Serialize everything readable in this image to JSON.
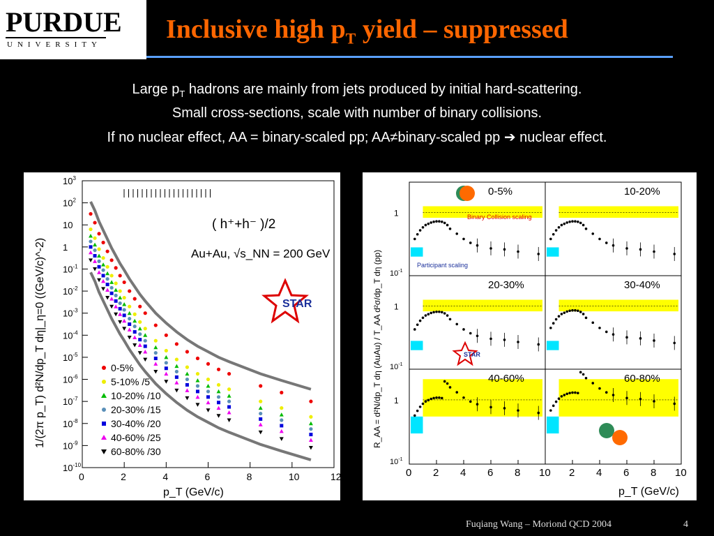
{
  "header": {
    "logo_name": "PURDUE",
    "logo_sub": "UNIVERSITY",
    "title_pre": "Inclusive high p",
    "title_sub": "T",
    "title_post": " yield – suppressed"
  },
  "body_text": {
    "line1_pre": "Large p",
    "line1_sub": "T",
    "line1_post": " hadrons are mainly from jets produced by initial hard-scattering.",
    "line2": "Small cross-sections, scale with number of binary collisions.",
    "line3_pre": "If no nuclear effect, AA = binary-scaled pp;   AA",
    "line3_neq": "≠",
    "line3_mid": "binary-scaled pp ",
    "line3_arrow": "➔",
    "line3_post": " nuclear effect."
  },
  "footer": {
    "credit": "Fuqiang Wang – Moriond QCD 2004",
    "page": "4"
  },
  "colors": {
    "title": "#ff6600",
    "rule": "#5aa0ff",
    "band_yellow": "#ffff00",
    "band_cyan": "#00e5ff",
    "envelope": "#777777"
  },
  "chart_data": [
    {
      "type": "scatter",
      "ylog": true,
      "xlim": [
        0,
        12
      ],
      "ylim_exp": [
        -10,
        3
      ],
      "xticks": [
        "0",
        "2",
        "4",
        "6",
        "8",
        "10",
        "12"
      ],
      "yticks": [
        "10^3",
        "10^2",
        "10",
        "1",
        "10^-1",
        "10^-2",
        "10^-3",
        "10^-4",
        "10^-5",
        "10^-6",
        "10^-7",
        "10^-8",
        "10^-9",
        "10^-10"
      ],
      "xlabel": "p_T (GeV/c)",
      "ylabel": "1/(2π p_T)  d²N/dp_T dη|_η=0 ((GeV/c)^-2)",
      "annotations": [
        "( h⁺+h⁻ )/2",
        "Au+Au, √s_NN = 200 GeV",
        "STAR"
      ],
      "x": [
        0.4,
        0.6,
        0.8,
        1.0,
        1.2,
        1.4,
        1.6,
        1.8,
        2.0,
        2.25,
        2.5,
        2.75,
        3.0,
        3.5,
        4.0,
        4.5,
        5.0,
        5.5,
        6.0,
        6.5,
        7.0,
        8.5,
        9.5,
        10.9
      ],
      "series": [
        {
          "name": "0-5%",
          "color": "#ee0000",
          "marker": "circle",
          "offset": 0.0
        },
        {
          "name": "5-10% /5",
          "color": "#eeee00",
          "marker": "circle",
          "offset": -0.7
        },
        {
          "name": "10-20% /10",
          "color": "#00bb00",
          "marker": "triangle-up",
          "offset": -1.0
        },
        {
          "name": "20-30% /15",
          "color": "#5a8fb8",
          "marker": "circle",
          "offset": -1.25
        },
        {
          "name": "30-40% /20",
          "color": "#0000dd",
          "marker": "square",
          "offset": -1.5
        },
        {
          "name": "40-60% /25",
          "color": "#ee00ee",
          "marker": "triangle-up",
          "offset": -1.75
        },
        {
          "name": "60-80% /30",
          "color": "#000000",
          "marker": "triangle-down",
          "offset": -2.1
        }
      ],
      "base_log10_y": [
        1.5,
        1.1,
        0.6,
        0.2,
        -0.2,
        -0.6,
        -0.95,
        -1.3,
        -1.6,
        -2.0,
        -2.35,
        -2.7,
        -3.0,
        -3.55,
        -4.0,
        -4.4,
        -4.75,
        -5.05,
        -5.3,
        -5.55,
        -5.75,
        -6.3,
        -6.6,
        -7.0
      ]
    },
    {
      "type": "scatter",
      "panels": [
        "0-5%",
        "10-20%",
        "20-30%",
        "30-40%",
        "40-60%",
        "60-80%"
      ],
      "ylog": true,
      "xlim": [
        0,
        10
      ],
      "ylim": [
        0.1,
        3
      ],
      "xticks": [
        "0",
        "2",
        "4",
        "6",
        "8",
        "10"
      ],
      "xtick_labels": [
        "2",
        "4",
        "6",
        "8",
        "10"
      ],
      "yticks": [
        "1",
        "10^-1"
      ],
      "xlabel": "p_T (GeV/c)",
      "ylabel": "R_AA = d²N/dp_T dη (AuAu) / T_AA d²σ/dp_T dη (pp)",
      "band_labels": [
        "Binary Collision scaling",
        "Participant scaling"
      ],
      "annotations": [
        "STAR"
      ],
      "x": [
        0.4,
        0.6,
        0.8,
        1.0,
        1.2,
        1.4,
        1.6,
        1.8,
        2.0,
        2.2,
        2.4,
        2.6,
        2.8,
        3.0,
        3.5,
        4.0,
        4.5,
        5.0,
        6.0,
        7.0,
        8.0,
        9.5
      ],
      "rising_0_5": [
        0.38,
        0.45,
        0.52,
        0.58,
        0.63,
        0.66,
        0.69,
        0.71,
        0.72,
        0.72,
        0.71,
        0.68,
        0.63,
        0.55,
        0.46,
        0.38,
        0.33,
        0.3,
        0.27,
        0.26,
        0.24,
        0.22
      ]
    }
  ]
}
